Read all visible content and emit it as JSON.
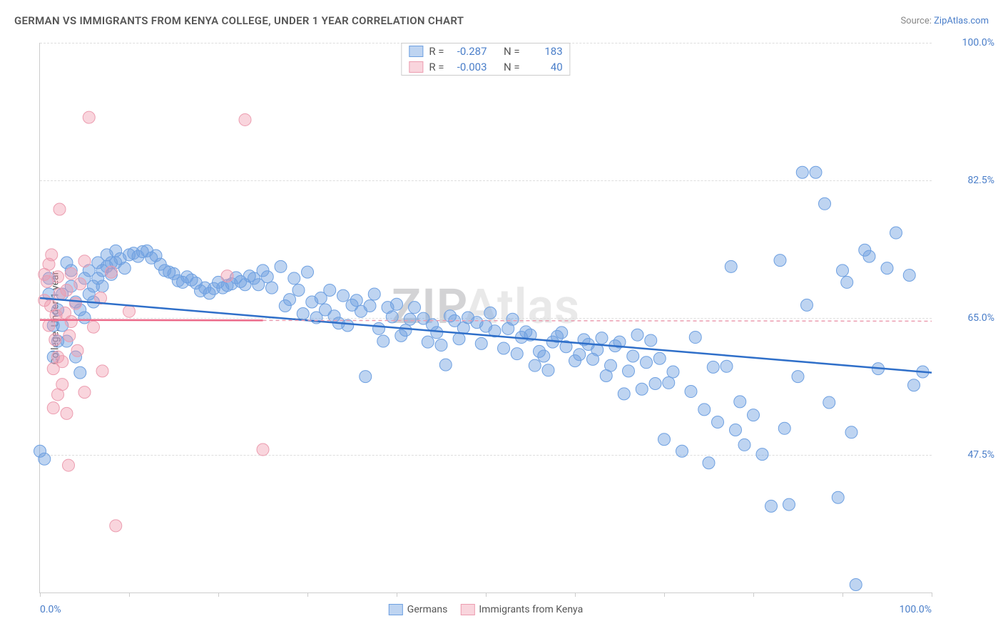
{
  "header": {
    "title": "GERMAN VS IMMIGRANTS FROM KENYA COLLEGE, UNDER 1 YEAR CORRELATION CHART",
    "source_label": "Source:",
    "source_name": "ZipAtlas.com"
  },
  "ylabel": "College, Under 1 year",
  "watermark": {
    "a": "ZIP",
    "b": "Atlas"
  },
  "chart": {
    "type": "scatter",
    "xlim": [
      0,
      100
    ],
    "ylim": [
      30,
      100
    ],
    "yticks": [
      {
        "v": 100.0,
        "label": "100.0%"
      },
      {
        "v": 82.5,
        "label": "82.5%"
      },
      {
        "v": 65.0,
        "label": "65.0%"
      },
      {
        "v": 47.5,
        "label": "47.5%"
      }
    ],
    "xtick_positions": [
      0,
      10,
      20,
      30,
      40,
      50,
      60,
      70,
      80,
      90,
      100
    ],
    "x_axis_labels": [
      {
        "v": 0,
        "label": "0.0%"
      },
      {
        "v": 100,
        "label": "100.0%"
      }
    ],
    "marker_radius": 8.5,
    "marker_stroke_width": 1,
    "trend_line_width": 2.5,
    "grid_color": "#dddddd",
    "axis_color": "#cccccc",
    "series": [
      {
        "name": "Germans",
        "fill": "rgba(110,160,225,0.45)",
        "stroke": "#6ea0e1",
        "r_value": "-0.287",
        "n_value": "183",
        "trend": {
          "x0": 0,
          "y0": 67.5,
          "x1": 100,
          "y1": 58.0,
          "color": "#2f6fc9",
          "dash": ""
        },
        "trend_ext": {
          "x0": 100,
          "y0": 58.0,
          "color": "#2f6fc9",
          "dash": ""
        },
        "points": [
          [
            0,
            48
          ],
          [
            0.5,
            47
          ],
          [
            1,
            68
          ],
          [
            1,
            70
          ],
          [
            1.5,
            60
          ],
          [
            1.5,
            64
          ],
          [
            2,
            66
          ],
          [
            2,
            62
          ],
          [
            2.5,
            68
          ],
          [
            2.5,
            64
          ],
          [
            3,
            72
          ],
          [
            3,
            62
          ],
          [
            3.5,
            69
          ],
          [
            3.5,
            71
          ],
          [
            4,
            67
          ],
          [
            4,
            60
          ],
          [
            4.5,
            58
          ],
          [
            4.5,
            66
          ],
          [
            5,
            70
          ],
          [
            5,
            65
          ],
          [
            5.5,
            68
          ],
          [
            5.5,
            71
          ],
          [
            6,
            69
          ],
          [
            6,
            67
          ],
          [
            6.5,
            72
          ],
          [
            6.5,
            70
          ],
          [
            7,
            71
          ],
          [
            7,
            69
          ],
          [
            7.5,
            73
          ],
          [
            7.5,
            71.5
          ],
          [
            8,
            72
          ],
          [
            8,
            70.5
          ],
          [
            8.5,
            73.5
          ],
          [
            8.5,
            72
          ],
          [
            9,
            72.5
          ],
          [
            9.5,
            71.3
          ],
          [
            10,
            73
          ],
          [
            10.5,
            73.2
          ],
          [
            11,
            72.8
          ],
          [
            11.5,
            73.4
          ],
          [
            12,
            73.5
          ],
          [
            12.5,
            72.6
          ],
          [
            13,
            72.9
          ],
          [
            13.5,
            71.8
          ],
          [
            14,
            71
          ],
          [
            14.5,
            70.8
          ],
          [
            15,
            70.6
          ],
          [
            15.5,
            69.7
          ],
          [
            16,
            69.5
          ],
          [
            16.5,
            70.2
          ],
          [
            17,
            69.8
          ],
          [
            17.5,
            69.4
          ],
          [
            18,
            68.4
          ],
          [
            18.5,
            68.8
          ],
          [
            19,
            68.1
          ],
          [
            19.5,
            68.7
          ],
          [
            20,
            69.5
          ],
          [
            20.5,
            68.8
          ],
          [
            21,
            69.1
          ],
          [
            21.5,
            69.3
          ],
          [
            22,
            70.1
          ],
          [
            22.5,
            69.6
          ],
          [
            23,
            69.2
          ],
          [
            23.5,
            70.3
          ],
          [
            24,
            70
          ],
          [
            24.5,
            69.2
          ],
          [
            25,
            71
          ],
          [
            25.5,
            70.2
          ],
          [
            26,
            68.8
          ],
          [
            27,
            71.5
          ],
          [
            27.5,
            66.5
          ],
          [
            28,
            67.3
          ],
          [
            28.5,
            70
          ],
          [
            29,
            68.5
          ],
          [
            29.5,
            65.5
          ],
          [
            30,
            70.8
          ],
          [
            30.5,
            67
          ],
          [
            31,
            65
          ],
          [
            31.5,
            67.5
          ],
          [
            32,
            66
          ],
          [
            32.5,
            68.5
          ],
          [
            33,
            65.2
          ],
          [
            33.5,
            64.3
          ],
          [
            34,
            67.8
          ],
          [
            34.5,
            64
          ],
          [
            35,
            66.6
          ],
          [
            35.5,
            67.2
          ],
          [
            36,
            65.8
          ],
          [
            36.5,
            57.5
          ],
          [
            37,
            66.5
          ],
          [
            37.5,
            68
          ],
          [
            38,
            63.6
          ],
          [
            38.5,
            62
          ],
          [
            39,
            66.3
          ],
          [
            39.5,
            65.1
          ],
          [
            40,
            66.7
          ],
          [
            40.5,
            62.7
          ],
          [
            41,
            63.4
          ],
          [
            41.5,
            64.8
          ],
          [
            42,
            66.3
          ],
          [
            43,
            64.9
          ],
          [
            43.5,
            61.9
          ],
          [
            44,
            64.1
          ],
          [
            44.5,
            63.1
          ],
          [
            45,
            61.5
          ],
          [
            45.5,
            59
          ],
          [
            46,
            65.2
          ],
          [
            46.5,
            64.6
          ],
          [
            47,
            62.3
          ],
          [
            47.5,
            63.7
          ],
          [
            48,
            65
          ],
          [
            49,
            64.4
          ],
          [
            49.5,
            61.7
          ],
          [
            50,
            63.9
          ],
          [
            50.5,
            65.6
          ],
          [
            51,
            63.3
          ],
          [
            52,
            61.1
          ],
          [
            52.5,
            63.6
          ],
          [
            53,
            64.8
          ],
          [
            53.5,
            60.4
          ],
          [
            54,
            62.5
          ],
          [
            54.5,
            63.2
          ],
          [
            55,
            62.8
          ],
          [
            55.5,
            58.9
          ],
          [
            56,
            60.7
          ],
          [
            56.5,
            60.1
          ],
          [
            57,
            58.3
          ],
          [
            57.5,
            61.9
          ],
          [
            58,
            62.6
          ],
          [
            58.5,
            63.1
          ],
          [
            59,
            61.3
          ],
          [
            60,
            59.5
          ],
          [
            60.5,
            60.3
          ],
          [
            61,
            62.2
          ],
          [
            61.5,
            61.6
          ],
          [
            62,
            59.7
          ],
          [
            62.5,
            60.9
          ],
          [
            63,
            62.4
          ],
          [
            63.5,
            57.6
          ],
          [
            64,
            58.9
          ],
          [
            64.5,
            61.4
          ],
          [
            65,
            61.9
          ],
          [
            65.5,
            55.3
          ],
          [
            66,
            58.2
          ],
          [
            66.5,
            60.1
          ],
          [
            67,
            62.8
          ],
          [
            67.5,
            55.9
          ],
          [
            68,
            59.3
          ],
          [
            68.5,
            62.1
          ],
          [
            69,
            56.6
          ],
          [
            69.5,
            59.8
          ],
          [
            70,
            49.5
          ],
          [
            70.5,
            56.7
          ],
          [
            71,
            58.1
          ],
          [
            72,
            48
          ],
          [
            73,
            55.6
          ],
          [
            73.5,
            62.5
          ],
          [
            74.5,
            53.3
          ],
          [
            75,
            46.5
          ],
          [
            75.5,
            58.7
          ],
          [
            76,
            51.7
          ],
          [
            77,
            58.8
          ],
          [
            77.5,
            71.5
          ],
          [
            78,
            50.7
          ],
          [
            78.5,
            54.3
          ],
          [
            79,
            48.8
          ],
          [
            80,
            52.6
          ],
          [
            81,
            47.6
          ],
          [
            82,
            41
          ],
          [
            83,
            72.3
          ],
          [
            83.5,
            50.9
          ],
          [
            84,
            41.2
          ],
          [
            85,
            57.5
          ],
          [
            85.5,
            83.5
          ],
          [
            86,
            66.6
          ],
          [
            87,
            83.5
          ],
          [
            88,
            79.5
          ],
          [
            88.5,
            54.2
          ],
          [
            89.5,
            42.1
          ],
          [
            90,
            71
          ],
          [
            90.5,
            69.5
          ],
          [
            91,
            50.4
          ],
          [
            91.5,
            31
          ],
          [
            92.5,
            73.6
          ],
          [
            93,
            72.8
          ],
          [
            94,
            58.5
          ],
          [
            95,
            71.3
          ],
          [
            96,
            75.8
          ],
          [
            97.5,
            70.4
          ],
          [
            98,
            56.4
          ],
          [
            99,
            58.1
          ]
        ]
      },
      {
        "name": "Immigrants from Kenya",
        "fill": "rgba(240,150,170,0.40)",
        "stroke": "#ec9db0",
        "r_value": "-0.003",
        "n_value": "40",
        "trend": {
          "x0": 0,
          "y0": 64.7,
          "x1": 25,
          "y1": 64.65,
          "color": "#ec6a8a",
          "dash": ""
        },
        "trend_ext": {
          "x0": 25,
          "y0": 64.65,
          "x1": 100,
          "y1": 64.55,
          "color": "#ec9db0",
          "dash": "5,4"
        },
        "points": [
          [
            0.5,
            70.5
          ],
          [
            0.5,
            67.2
          ],
          [
            0.8,
            69.6
          ],
          [
            1,
            71.8
          ],
          [
            1,
            64
          ],
          [
            1.2,
            66.5
          ],
          [
            1.3,
            73
          ],
          [
            1.5,
            58.5
          ],
          [
            1.5,
            53.5
          ],
          [
            1.7,
            62.2
          ],
          [
            1.8,
            65.3
          ],
          [
            2,
            55.2
          ],
          [
            2,
            70.2
          ],
          [
            2,
            60
          ],
          [
            2.2,
            68
          ],
          [
            2.2,
            78.8
          ],
          [
            2.5,
            56.5
          ],
          [
            2.5,
            59.4
          ],
          [
            2.8,
            65.6
          ],
          [
            3,
            68.5
          ],
          [
            3,
            52.8
          ],
          [
            3.2,
            46.2
          ],
          [
            3.3,
            62.7
          ],
          [
            3.5,
            64.5
          ],
          [
            3.5,
            70.6
          ],
          [
            4,
            66.8
          ],
          [
            4.2,
            60.8
          ],
          [
            4.5,
            69.3
          ],
          [
            5,
            72.2
          ],
          [
            5,
            55.5
          ],
          [
            5.5,
            90.5
          ],
          [
            6,
            63.8
          ],
          [
            6.8,
            67.5
          ],
          [
            7,
            58.2
          ],
          [
            8,
            70.8
          ],
          [
            8.5,
            38.5
          ],
          [
            10,
            65.8
          ],
          [
            21,
            70.3
          ],
          [
            23,
            90.2
          ],
          [
            25,
            48.2
          ]
        ]
      }
    ]
  },
  "legend_bottom": [
    {
      "label": "Germans",
      "fill": "rgba(110,160,225,0.45)",
      "stroke": "#6ea0e1"
    },
    {
      "label": "Immigrants from Kenya",
      "fill": "rgba(240,150,170,0.40)",
      "stroke": "#ec9db0"
    }
  ]
}
